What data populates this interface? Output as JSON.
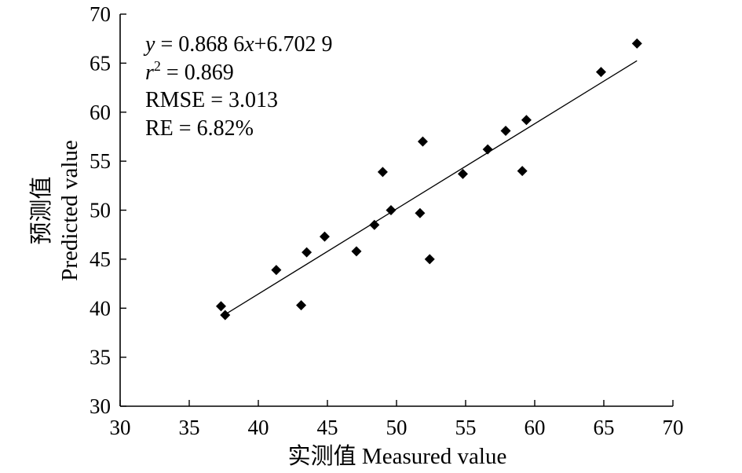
{
  "chart_data": {
    "type": "scatter",
    "title": "",
    "xlabel": "实测值 Measured value",
    "ylabel_line1": "预测值",
    "ylabel_line2": "Predicted value",
    "xlim": [
      30,
      70
    ],
    "ylim": [
      30,
      70
    ],
    "xticks": [
      30,
      35,
      40,
      45,
      50,
      55,
      60,
      65,
      70
    ],
    "yticks": [
      30,
      35,
      40,
      45,
      50,
      55,
      60,
      65,
      70
    ],
    "grid": false,
    "series": [
      {
        "points": [
          [
            37.3,
            40.2
          ],
          [
            37.6,
            39.3
          ],
          [
            41.3,
            43.9
          ],
          [
            43.1,
            40.3
          ],
          [
            43.5,
            45.7
          ],
          [
            44.8,
            47.3
          ],
          [
            47.1,
            45.8
          ],
          [
            48.4,
            48.5
          ],
          [
            49.0,
            53.9
          ],
          [
            49.6,
            50.0
          ],
          [
            51.7,
            49.7
          ],
          [
            51.9,
            57.0
          ],
          [
            52.4,
            45.0
          ],
          [
            54.8,
            53.7
          ],
          [
            56.6,
            56.2
          ],
          [
            57.9,
            58.1
          ],
          [
            59.1,
            54.0
          ],
          [
            59.4,
            59.2
          ],
          [
            64.8,
            64.1
          ],
          [
            67.4,
            67.0
          ]
        ]
      }
    ],
    "fit_line": {
      "slope": 0.8686,
      "intercept": 6.7029,
      "x_range": [
        37.6,
        67.4
      ]
    },
    "annotations": {
      "equation_y": "y",
      "equation_mid": " = 0.868 6",
      "equation_x": "x",
      "equation_tail": "+6.702 9",
      "r2_var": "r",
      "r2_exp": "2",
      "r2_value": " = 0.869",
      "rmse": "RMSE = 3.013",
      "re": "RE = 6.82%"
    }
  }
}
